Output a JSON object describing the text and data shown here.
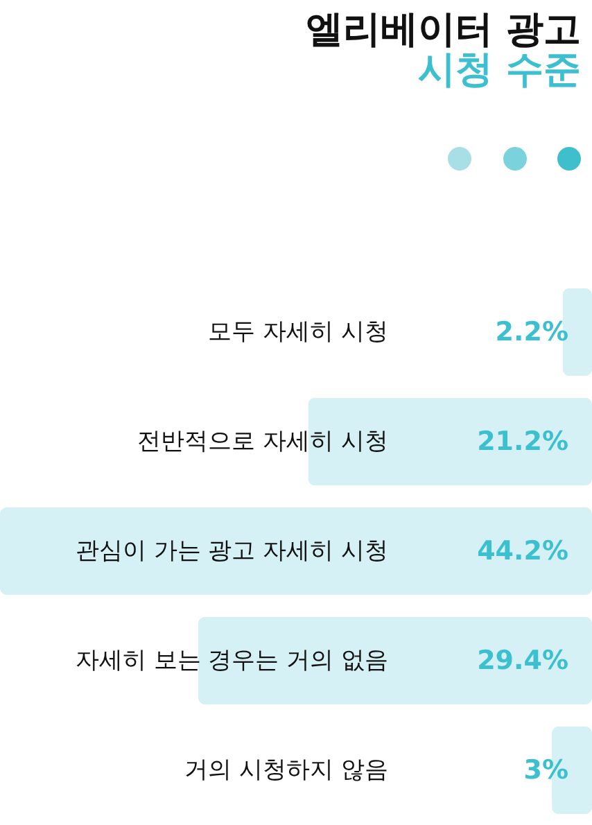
{
  "chart_data": {
    "type": "bar",
    "orientation": "horizontal",
    "title": "엘리베이터 광고",
    "subtitle": "시청 수준",
    "categories": [
      "모두 자세히 시청",
      "전반적으로 자세히 시청",
      "관심이 가는 광고 자세히 시청",
      "자세히 보는 경우는 거의 없음",
      "거의 시청하지 않음"
    ],
    "values": [
      2.2,
      21.2,
      44.2,
      29.4,
      3
    ],
    "value_labels": [
      "2.2%",
      "21.2%",
      "44.2%",
      "29.4%",
      "3%"
    ],
    "color": "#d6f1f5"
  }
}
